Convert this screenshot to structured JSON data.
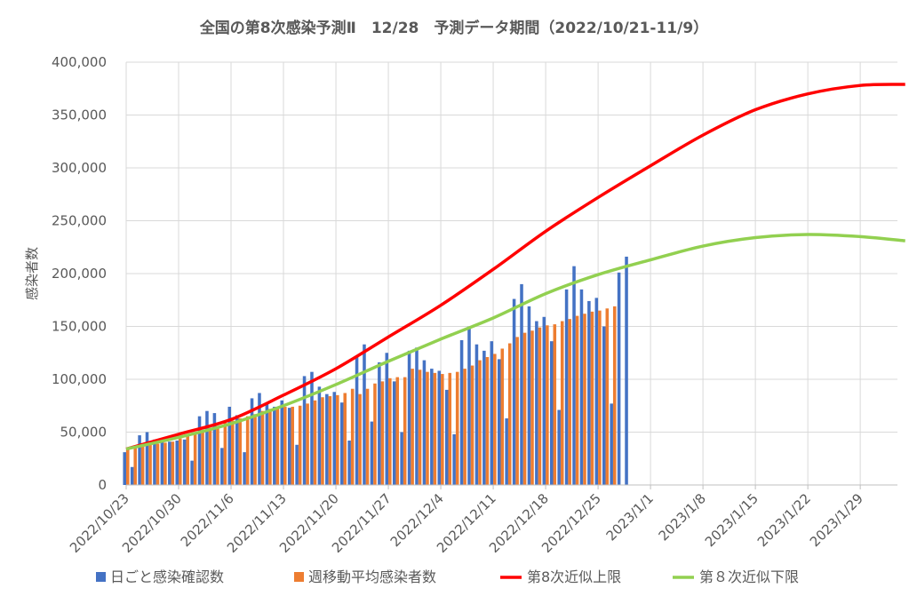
{
  "chart_data": {
    "type": "bar",
    "title": "全国の第8次感染予測Ⅱ　12/28　予測データ期間（2022/10/21-11/9）",
    "xlabel": "",
    "ylabel": "感染者数",
    "ylim": [
      0,
      400000
    ],
    "y_ticks": [
      "0",
      "50,000",
      "100,000",
      "150,000",
      "200,000",
      "250,000",
      "300,000",
      "350,000",
      "400,000"
    ],
    "x_ticks": [
      "2022/10/23",
      "2022/10/30",
      "2022/11/6",
      "2022/11/13",
      "2022/11/20",
      "2022/11/27",
      "2022/12/4",
      "2022/12/11",
      "2022/12/18",
      "2022/12/25",
      "2023/1/1",
      "2023/1/8",
      "2023/1/15",
      "2023/1/22",
      "2023/1/29"
    ],
    "grid": true,
    "legend_position": "bottom",
    "series": [
      {
        "name": "日ごと感染確認数",
        "type": "bar",
        "color": "#4472c4",
        "start_date": "2022/10/23",
        "values": [
          31000,
          17000,
          47000,
          50000,
          43000,
          42000,
          41000,
          42000,
          43000,
          23000,
          65000,
          70000,
          68000,
          35000,
          74000,
          66000,
          31000,
          82000,
          87000,
          77000,
          74000,
          80000,
          73000,
          38000,
          103000,
          107000,
          93000,
          86000,
          88000,
          78000,
          42000,
          121000,
          133000,
          60000,
          116000,
          125000,
          98000,
          50000,
          127000,
          130000,
          118000,
          110000,
          108000,
          90000,
          48000,
          137000,
          150000,
          133000,
          127000,
          136000,
          119000,
          63000,
          176000,
          190000,
          169000,
          155000,
          159000,
          136000,
          71000,
          185000,
          207000,
          185000,
          174000,
          177000,
          150000,
          77000,
          201000,
          216000
        ]
      },
      {
        "name": "週移動平均感染者数",
        "type": "bar",
        "color": "#ed7d31",
        "start_date": "2022/10/23",
        "values": [
          35000,
          36000,
          37000,
          38000,
          39000,
          40000,
          41000,
          44000,
          47000,
          50000,
          52000,
          54000,
          56000,
          59000,
          61000,
          63000,
          65000,
          67000,
          70000,
          72000,
          73000,
          74000,
          74000,
          75000,
          77000,
          80000,
          83000,
          84000,
          85000,
          87000,
          91000,
          86000,
          91000,
          96000,
          98000,
          101000,
          102000,
          102000,
          110000,
          109000,
          107000,
          106000,
          105000,
          106000,
          107000,
          110000,
          113000,
          118000,
          121000,
          124000,
          129000,
          134000,
          140000,
          144000,
          146000,
          149000,
          151000,
          152000,
          155000,
          157000,
          160000,
          162000,
          164000,
          165000,
          167000,
          169000
        ]
      },
      {
        "name": "第8次近似上限",
        "type": "line",
        "color": "#ff0000",
        "x": [
          "2022/10/23",
          "2022/10/30",
          "2022/11/6",
          "2022/11/13",
          "2022/11/20",
          "2022/11/27",
          "2022/12/4",
          "2022/12/11",
          "2022/12/18",
          "2022/12/25",
          "2023/1/1",
          "2023/1/8",
          "2023/1/15",
          "2023/1/22",
          "2023/1/29",
          "2023/2/4"
        ],
        "values": [
          34000,
          48000,
          62000,
          85000,
          110000,
          140000,
          170000,
          204000,
          240000,
          272000,
          302000,
          331000,
          355000,
          370000,
          378000,
          379000
        ]
      },
      {
        "name": "第８次近似下限",
        "type": "line",
        "color": "#92d050",
        "x": [
          "2022/10/23",
          "2022/10/30",
          "2022/11/6",
          "2022/11/13",
          "2022/11/20",
          "2022/11/27",
          "2022/12/4",
          "2022/12/11",
          "2022/12/18",
          "2022/12/25",
          "2023/1/1",
          "2023/1/8",
          "2023/1/15",
          "2023/1/22",
          "2023/1/29",
          "2023/2/4"
        ],
        "values": [
          34000,
          45000,
          58000,
          75000,
          95000,
          117000,
          138000,
          158000,
          181000,
          199000,
          213000,
          226000,
          234000,
          237000,
          235000,
          231000
        ]
      }
    ]
  }
}
